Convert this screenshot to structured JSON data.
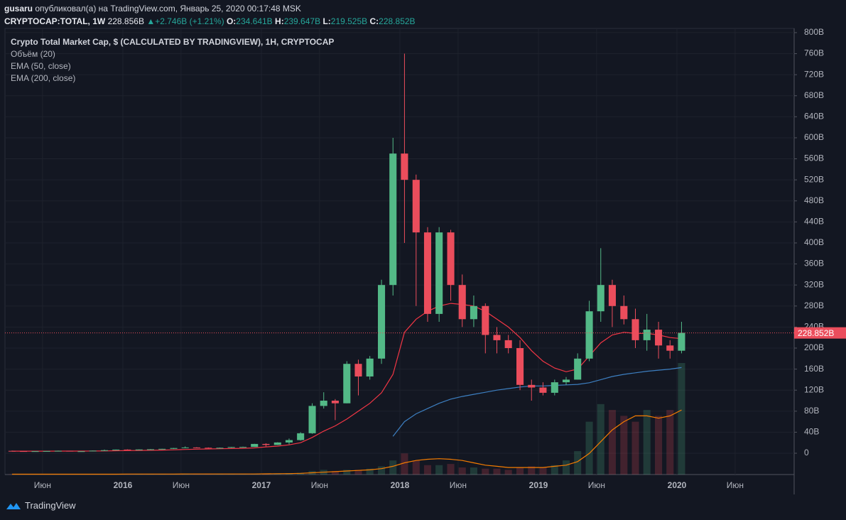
{
  "header": {
    "publisher": "gusaru",
    "published": "опубликовал(а) на TradingView.com, Январь 25, 2020 00:17:48 MSK",
    "symbol": "CRYPTOCAP:TOTAL, 1W",
    "last": "228.856B",
    "change": "+2.746B (+1.21%)",
    "ohlc": [
      {
        "key": "O:",
        "value": "234.641B"
      },
      {
        "key": "H:",
        "value": "239.647B"
      },
      {
        "key": "L:",
        "value": "219.525B"
      },
      {
        "key": "C:",
        "value": "228.852B"
      }
    ]
  },
  "footer": {
    "brand": "TradingView"
  },
  "chart_data": {
    "type": "candlestick",
    "title": "Crypto Total Market Cap, $ (CALCULATED BY TRADINGVIEW), 1H, CRYPTOCAP",
    "up_color": "#53b987",
    "down_color": "#eb4d5c",
    "x": [
      2015.2,
      2015.283,
      2015.367,
      2015.45,
      2015.533,
      2015.617,
      2015.7,
      2015.783,
      2015.867,
      2015.95,
      2016.033,
      2016.117,
      2016.2,
      2016.283,
      2016.367,
      2016.45,
      2016.533,
      2016.617,
      2016.7,
      2016.783,
      2016.867,
      2016.95,
      2017.033,
      2017.117,
      2017.2,
      2017.283,
      2017.367,
      2017.45,
      2017.533,
      2017.617,
      2017.7,
      2017.783,
      2017.867,
      2017.95,
      2018.033,
      2018.117,
      2018.2,
      2018.283,
      2018.367,
      2018.45,
      2018.533,
      2018.617,
      2018.7,
      2018.783,
      2018.867,
      2018.95,
      2019.033,
      2019.117,
      2019.2,
      2019.283,
      2019.367,
      2019.45,
      2019.533,
      2019.617,
      2019.7,
      2019.783,
      2019.867,
      2019.95,
      2020.033
    ],
    "open": [
      4.5,
      4,
      3.8,
      3.9,
      4.2,
      4.6,
      3.8,
      3.8,
      4.9,
      5.8,
      7,
      6.7,
      7.2,
      7.6,
      8.4,
      9.9,
      11,
      10.4,
      10.2,
      10.4,
      11.8,
      12,
      17.7,
      15.8,
      20.5,
      25,
      38,
      90,
      100,
      95,
      170,
      146,
      180,
      320,
      570,
      520,
      420,
      265,
      420,
      320,
      255,
      280,
      225,
      215,
      200,
      130,
      125,
      115,
      135,
      140,
      180,
      270,
      320,
      280,
      255,
      215,
      235,
      205,
      195
    ],
    "high": [
      5,
      4.2,
      4,
      4.3,
      5,
      4.8,
      4,
      5,
      7,
      7,
      7.5,
      7.5,
      8,
      8.5,
      10,
      13,
      11.5,
      11,
      10.8,
      12,
      12.5,
      18,
      19,
      21,
      28,
      40,
      95,
      116,
      103,
      175,
      178,
      185,
      330,
      600,
      760,
      530,
      430,
      430,
      425,
      340,
      300,
      285,
      240,
      225,
      215,
      140,
      135,
      140,
      145,
      190,
      290,
      390,
      330,
      300,
      275,
      265,
      250,
      215,
      250
    ],
    "low": [
      4,
      3.6,
      3.6,
      3.8,
      4.1,
      3.6,
      3.6,
      3.7,
      4.7,
      5.5,
      6,
      6.3,
      7,
      7.3,
      8,
      9.5,
      9.5,
      9.2,
      9.9,
      10.2,
      11.5,
      12,
      13,
      15.5,
      17,
      24,
      37,
      85,
      63,
      95,
      110,
      140,
      170,
      300,
      400,
      280,
      250,
      250,
      290,
      240,
      240,
      190,
      190,
      190,
      120,
      100,
      110,
      110,
      130,
      140,
      175,
      250,
      240,
      245,
      200,
      195,
      180,
      180,
      190
    ],
    "close": [
      4,
      3.8,
      3.9,
      4.2,
      4.6,
      3.8,
      3.8,
      4.9,
      5.8,
      7,
      6.7,
      7.2,
      7.6,
      8.4,
      9.9,
      11,
      10.4,
      10.2,
      10.4,
      11.8,
      12,
      17.7,
      15.8,
      20.5,
      25,
      38,
      90,
      100,
      95,
      170,
      146,
      180,
      320,
      570,
      520,
      420,
      265,
      420,
      320,
      255,
      280,
      225,
      215,
      200,
      130,
      125,
      115,
      135,
      140,
      180,
      270,
      320,
      280,
      255,
      215,
      235,
      205,
      195,
      229
    ],
    "overlays": [
      {
        "name": "EMA (50, close)",
        "color": "#f23645",
        "values": [
          4,
          4,
          4,
          4,
          4.1,
          4.1,
          4.1,
          4.2,
          4.4,
          4.7,
          5,
          5.3,
          5.6,
          6,
          6.5,
          7.2,
          7.7,
          8.1,
          8.5,
          9,
          9.4,
          10.2,
          12,
          13.5,
          16,
          20,
          30,
          42,
          52,
          65,
          80,
          95,
          115,
          150,
          230,
          255,
          270,
          280,
          285,
          283,
          280,
          270,
          255,
          240,
          220,
          195,
          175,
          162,
          155,
          160,
          185,
          210,
          225,
          230,
          228,
          228,
          225,
          220,
          218
        ]
      },
      {
        "name": "EMA (200, close)",
        "color": "#3d7fc1",
        "values": [
          null,
          null,
          null,
          null,
          null,
          null,
          null,
          null,
          null,
          null,
          null,
          null,
          null,
          null,
          null,
          null,
          null,
          null,
          null,
          null,
          null,
          null,
          null,
          null,
          null,
          null,
          null,
          null,
          null,
          null,
          null,
          null,
          null,
          32,
          60,
          75,
          85,
          95,
          103,
          108,
          112,
          116,
          120,
          123,
          126,
          128,
          128,
          129,
          130,
          131,
          134,
          140,
          146,
          150,
          153,
          156,
          158,
          160,
          163
        ]
      }
    ],
    "volume": {
      "name": "Объём (20)",
      "ma_color": "#f57c00",
      "lim": [
        0,
        380
      ],
      "values": [
        0.3,
        0.3,
        0.3,
        0.3,
        0.3,
        0.3,
        0.3,
        0.3,
        0.4,
        0.4,
        0.4,
        0.4,
        0.4,
        0.4,
        0.5,
        0.7,
        0.5,
        0.4,
        0.4,
        0.5,
        0.5,
        0.6,
        0.8,
        0.8,
        1.2,
        1.5,
        3,
        4,
        3,
        4,
        4,
        5,
        7,
        12,
        18,
        12,
        8,
        8,
        9,
        6,
        6,
        5,
        5,
        4,
        6,
        7,
        6,
        8,
        12,
        20,
        45,
        60,
        55,
        50,
        45,
        55,
        50,
        55,
        95
      ],
      "ma": [
        0.3,
        0.3,
        0.3,
        0.3,
        0.3,
        0.3,
        0.3,
        0.3,
        0.3,
        0.3,
        0.4,
        0.4,
        0.4,
        0.4,
        0.4,
        0.5,
        0.5,
        0.5,
        0.5,
        0.5,
        0.5,
        0.5,
        0.6,
        0.7,
        0.8,
        1,
        1.5,
        2,
        2.5,
        3,
        3.5,
        4,
        5,
        7,
        10,
        12,
        13,
        13.5,
        13,
        12,
        10,
        8,
        7,
        6,
        6,
        6,
        6,
        7,
        8,
        11,
        18,
        28,
        38,
        45,
        50,
        50,
        48,
        50,
        55
      ]
    },
    "last_price": {
      "value": 228.852,
      "label": "228.852B"
    },
    "last_color": "#eb4d5c",
    "ylim": [
      -40.5,
      808
    ],
    "yticks": [
      0,
      {
        "value": 40,
        "label": "40B"
      },
      {
        "value": 80,
        "label": "80B"
      },
      {
        "value": 120,
        "label": "120B"
      },
      {
        "value": 160,
        "label": "160B"
      },
      {
        "value": 200,
        "label": "200B"
      },
      {
        "value": 240,
        "label": "240B"
      },
      {
        "value": 280,
        "label": "280B"
      },
      {
        "value": 320,
        "label": "320B"
      },
      {
        "value": 360,
        "label": "360B"
      },
      {
        "value": 400,
        "label": "400B"
      },
      {
        "value": 440,
        "label": "440B"
      },
      {
        "value": 480,
        "label": "480B"
      },
      {
        "value": 520,
        "label": "520B"
      },
      {
        "value": 560,
        "label": "560B"
      },
      {
        "value": 600,
        "label": "600B"
      },
      {
        "value": 640,
        "label": "640B"
      },
      {
        "value": 680,
        "label": "680B"
      },
      {
        "value": 720,
        "label": "720B"
      },
      {
        "value": 760,
        "label": "760B"
      },
      {
        "value": 800,
        "label": "800B"
      }
    ],
    "xlim": [
      2015.149,
      2020.846
    ],
    "xticks": [
      {
        "value": 2015.42,
        "label": "Июн"
      },
      {
        "value": 2016,
        "label": "2016"
      },
      {
        "value": 2016.42,
        "label": "Июн"
      },
      {
        "value": 2017,
        "label": "2017"
      },
      {
        "value": 2017.42,
        "label": "Июн"
      },
      {
        "value": 2018,
        "label": "2018"
      },
      {
        "value": 2018.42,
        "label": "Июн"
      },
      {
        "value": 2019,
        "label": "2019"
      },
      {
        "value": 2019.42,
        "label": "Июн"
      },
      {
        "value": 2020,
        "label": "2020"
      },
      {
        "value": 2020.42,
        "label": "Июн"
      }
    ],
    "grid": true
  }
}
